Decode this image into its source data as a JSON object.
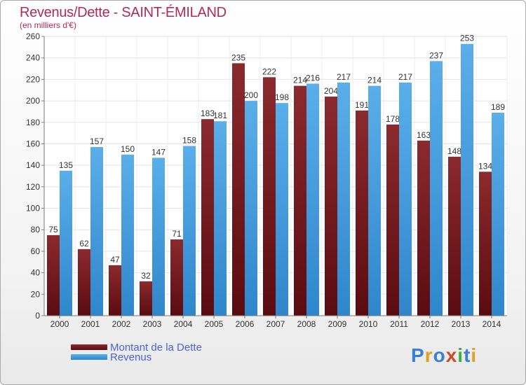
{
  "title": "Revenus/Dette - SAINT-ÉMILAND",
  "subtitle": "(en milliers d'€)",
  "legend": {
    "dette_label": "Montant de la Dette",
    "revenus_label": "Revenus"
  },
  "logo": "Proxiti",
  "colors": {
    "dette": "#6b1419",
    "revenus": "#3f9ae0",
    "title": "#b02a59",
    "legend_text": "#4a63d9"
  },
  "chart_data": {
    "type": "bar",
    "categories": [
      "2000",
      "2001",
      "2002",
      "2003",
      "2004",
      "2005",
      "2006",
      "2007",
      "2008",
      "2009",
      "2010",
      "2011",
      "2012",
      "2013",
      "2014"
    ],
    "series": [
      {
        "name": "Montant de la Dette",
        "values": [
          75,
          62,
          47,
          32,
          71,
          183,
          235,
          222,
          214,
          204,
          191,
          178,
          163,
          148,
          134
        ]
      },
      {
        "name": "Revenus",
        "values": [
          135,
          157,
          150,
          147,
          158,
          181,
          200,
          198,
          216,
          217,
          214,
          217,
          237,
          253,
          189
        ]
      }
    ],
    "ylim": [
      0,
      260
    ],
    "yticks": [
      0,
      20,
      40,
      60,
      80,
      100,
      120,
      140,
      160,
      180,
      200,
      220,
      240,
      260
    ],
    "grid": true
  }
}
